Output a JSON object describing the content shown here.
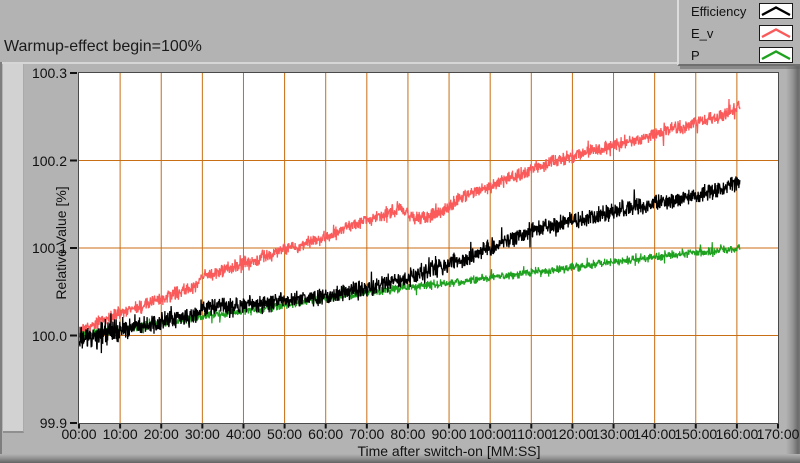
{
  "window": {
    "bg_color": "#b3b3b3",
    "title_text": "Warmup-effect begin=100%"
  },
  "legend": {
    "position": "top-right",
    "items": [
      {
        "label": "Efficiency",
        "color": "#000000"
      },
      {
        "label": "E_v",
        "color": "#fa5a5a"
      },
      {
        "label": "P",
        "color": "#1ea11e"
      }
    ]
  },
  "chart_data": {
    "type": "line",
    "title": "Warmup-effect begin=100%",
    "xlabel": "Time after switch-on [MM:SS]",
    "ylabel": "Relative Value [%]",
    "x_unit": "minutes",
    "xlim": [
      0,
      170
    ],
    "ylim": [
      99.9,
      100.3
    ],
    "x_ticks_minutes": [
      0,
      10,
      20,
      30,
      40,
      50,
      60,
      70,
      80,
      90,
      100,
      110,
      120,
      130,
      140,
      150,
      160,
      170
    ],
    "x_tick_labels": [
      "00:00",
      "10:00",
      "20:00",
      "30:00",
      "40:00",
      "50:00",
      "60:00",
      "70:00",
      "80:00",
      "90:00",
      "100:00",
      "110:00",
      "120:00",
      "130:00",
      "140:00",
      "150:00",
      "160:00",
      "170:00"
    ],
    "y_tick_labels": [
      "99.9",
      "100.0",
      "100.1",
      "100.2",
      "100.3"
    ],
    "grid": true,
    "grid_color": "#c86e14",
    "plot_bg": "#ffffff",
    "plot_border_color": "#4a4a4a",
    "tick_color": "#111111",
    "legend_position": "top-right",
    "data_end_minutes": 160.8,
    "series": [
      {
        "name": "Efficiency",
        "color": "#000000",
        "noise_pp": 0.012,
        "noise_boost": {
          "before_minutes": 12,
          "factor": 1.5
        },
        "trend_anchors": [
          [
            0,
            99.993
          ],
          [
            5,
            100.0
          ],
          [
            10,
            100.006
          ],
          [
            15,
            100.012
          ],
          [
            20,
            100.016
          ],
          [
            25,
            100.02
          ],
          [
            28,
            100.022
          ],
          [
            30,
            100.032
          ],
          [
            35,
            100.033
          ],
          [
            40,
            100.034
          ],
          [
            45,
            100.036
          ],
          [
            50,
            100.04
          ],
          [
            55,
            100.042
          ],
          [
            60,
            100.044
          ],
          [
            65,
            100.05
          ],
          [
            70,
            100.055
          ],
          [
            75,
            100.06
          ],
          [
            80,
            100.065
          ],
          [
            85,
            100.075
          ],
          [
            90,
            100.082
          ],
          [
            95,
            100.09
          ],
          [
            100,
            100.1
          ],
          [
            105,
            100.11
          ],
          [
            110,
            100.12
          ],
          [
            115,
            100.126
          ],
          [
            120,
            100.131
          ],
          [
            125,
            100.136
          ],
          [
            130,
            100.141
          ],
          [
            135,
            100.146
          ],
          [
            140,
            100.151
          ],
          [
            145,
            100.156
          ],
          [
            150,
            100.16
          ],
          [
            155,
            100.166
          ],
          [
            158,
            100.17
          ],
          [
            160.8,
            100.173
          ]
        ]
      },
      {
        "name": "E_v",
        "color": "#fa5a5a",
        "noise_pp": 0.009,
        "trend_anchors": [
          [
            0,
            100.005
          ],
          [
            5,
            100.015
          ],
          [
            10,
            100.026
          ],
          [
            15,
            100.033
          ],
          [
            20,
            100.042
          ],
          [
            25,
            100.05
          ],
          [
            28,
            100.055
          ],
          [
            30,
            100.068
          ],
          [
            35,
            100.075
          ],
          [
            40,
            100.082
          ],
          [
            45,
            100.09
          ],
          [
            50,
            100.098
          ],
          [
            55,
            100.105
          ],
          [
            60,
            100.112
          ],
          [
            65,
            100.122
          ],
          [
            70,
            100.132
          ],
          [
            75,
            100.14
          ],
          [
            78,
            100.145
          ],
          [
            82,
            100.133
          ],
          [
            88,
            100.139
          ],
          [
            92,
            100.155
          ],
          [
            95,
            100.162
          ],
          [
            100,
            100.17
          ],
          [
            105,
            100.18
          ],
          [
            110,
            100.19
          ],
          [
            115,
            100.198
          ],
          [
            120,
            100.205
          ],
          [
            125,
            100.211
          ],
          [
            130,
            100.217
          ],
          [
            135,
            100.223
          ],
          [
            140,
            100.23
          ],
          [
            145,
            100.236
          ],
          [
            150,
            100.242
          ],
          [
            155,
            100.248
          ],
          [
            158,
            100.255
          ],
          [
            160.8,
            100.262
          ]
        ]
      },
      {
        "name": "P",
        "color": "#1ea11e",
        "noise_pp": 0.006,
        "trend_anchors": [
          [
            0,
            100.0
          ],
          [
            10,
            100.007
          ],
          [
            20,
            100.014
          ],
          [
            30,
            100.022
          ],
          [
            40,
            100.028
          ],
          [
            50,
            100.035
          ],
          [
            60,
            100.042
          ],
          [
            70,
            100.049
          ],
          [
            80,
            100.055
          ],
          [
            90,
            100.06
          ],
          [
            100,
            100.066
          ],
          [
            110,
            100.072
          ],
          [
            120,
            100.078
          ],
          [
            130,
            100.084
          ],
          [
            140,
            100.09
          ],
          [
            150,
            100.095
          ],
          [
            155,
            100.097
          ],
          [
            160.8,
            100.1
          ]
        ]
      }
    ]
  }
}
